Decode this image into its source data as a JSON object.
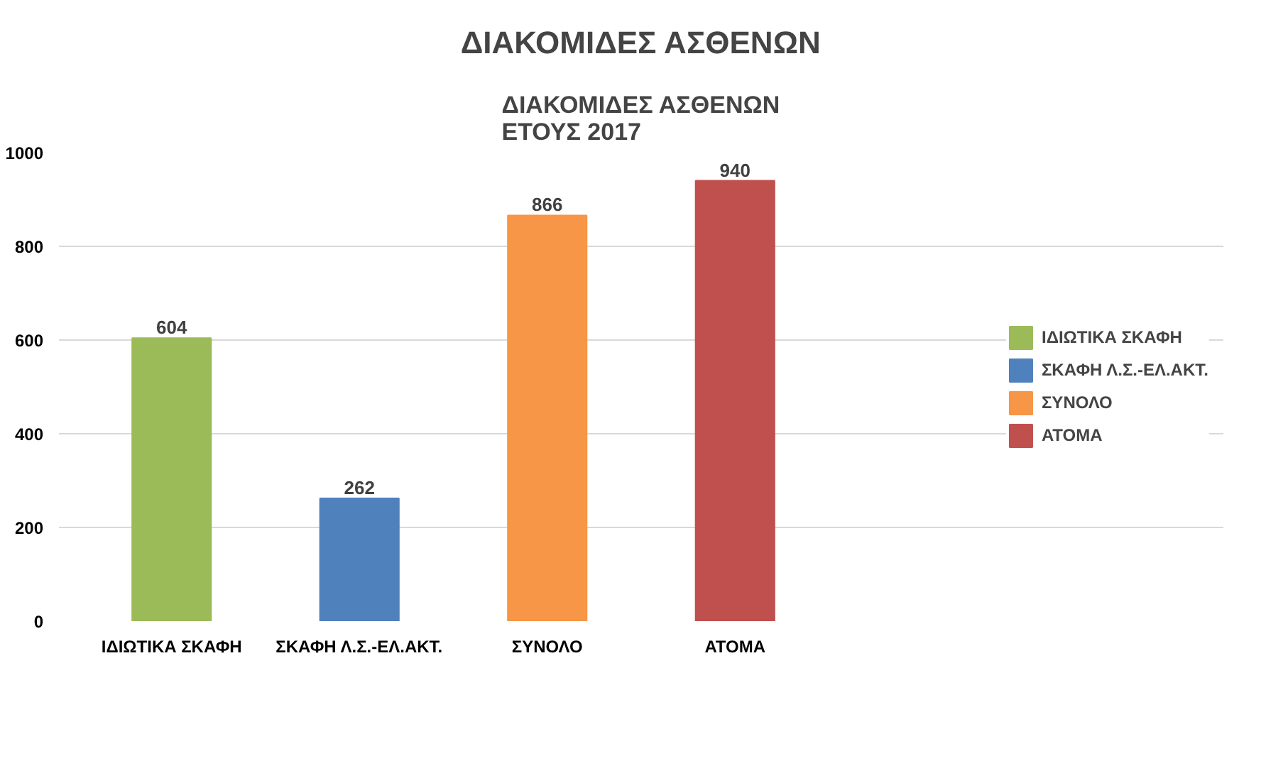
{
  "chart_data": {
    "type": "bar",
    "title": "ΔΙΑΚΟΜΙΔΕΣ ΑΣΘΕΝΩΝ",
    "subtitle": "ΔΙΑΚΟΜΙΔΕΣ ΑΣΘΕΝΩΝ\nΕΤΟΥΣ 2017",
    "categories": [
      "ΙΔΙΩΤΙΚΑ ΣΚΑΦΗ",
      "ΣΚΑΦΗ Λ.Σ.-ΕΛ.ΑΚΤ.",
      "ΣΥΝΟΛΟ",
      "ΑΤΟΜΑ"
    ],
    "stacked": true,
    "series": [
      {
        "name": "ΙΔΙΩΤΙΚΑ ΣΚΑΦΗ",
        "color": "#9bbb59",
        "values": [
          604,
          null,
          null,
          null
        ]
      },
      {
        "name": "ΣΚΑΦΗ Λ.Σ.-ΕΛ.ΑΚΤ.",
        "color": "#4f81bd",
        "values": [
          null,
          262,
          null,
          null
        ]
      },
      {
        "name": "ΣΥΝΟΛΟ",
        "color": "#f79646",
        "values": [
          null,
          null,
          866,
          null
        ]
      },
      {
        "name": "ΑΤΟΜΑ",
        "color": "#c0504d",
        "values": [
          null,
          null,
          null,
          940
        ]
      }
    ],
    "ylim": [
      0,
      1000
    ],
    "yticks": [
      0,
      200,
      400,
      600,
      800,
      1000
    ],
    "grid": "y",
    "legend": "right",
    "data_labels": true
  }
}
